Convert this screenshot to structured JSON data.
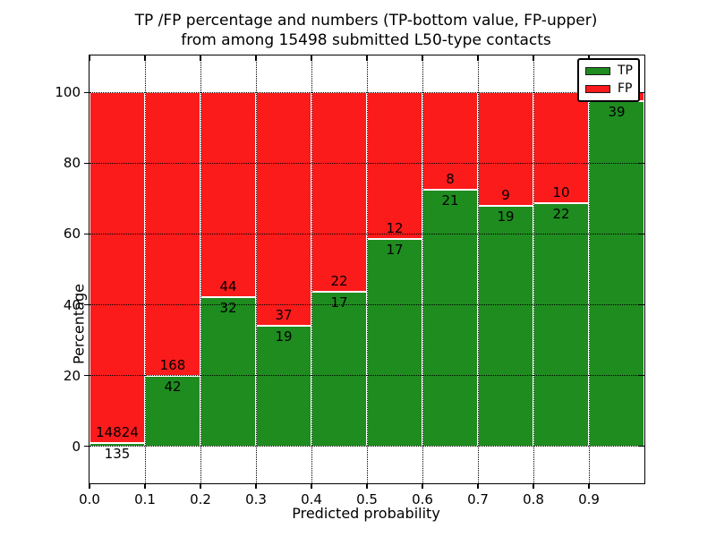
{
  "title": {
    "line1": "TP /FP percentage and numbers (TP-bottom value, FP-upper)",
    "line2": "from among 15498 submitted L50-type contacts"
  },
  "chart_data": {
    "type": "bar",
    "stacked": true,
    "title": "TP /FP percentage and numbers (TP-bottom value, FP-upper)\nfrom among 15498 submitted L50-type contacts",
    "xlabel": "Predicted probability",
    "ylabel": "Percentage",
    "xlim": [
      0.0,
      1.0
    ],
    "ylim": [
      -10.5,
      110.5
    ],
    "x_ticks": [
      "0.0",
      "0.1",
      "0.2",
      "0.3",
      "0.4",
      "0.5",
      "0.6",
      "0.7",
      "0.8",
      "0.9"
    ],
    "y_ticks": [
      0,
      20,
      40,
      60,
      80,
      100
    ],
    "grid": "dotted, both axes, drawn over bars",
    "bar_unit": "percent of bin total (TP+FP stacked to 100%)",
    "total_contacts": 15498,
    "legend": {
      "position": "upper-right",
      "entries": [
        {
          "label": "TP",
          "color": "#1f8c1f"
        },
        {
          "label": "FP",
          "color": "#fb1b1b"
        }
      ]
    },
    "bins": [
      {
        "range": [
          0.0,
          0.1
        ],
        "tp": 135,
        "fp": 14824,
        "show_fp_label": true
      },
      {
        "range": [
          0.1,
          0.2
        ],
        "tp": 42,
        "fp": 168,
        "show_fp_label": true
      },
      {
        "range": [
          0.2,
          0.3
        ],
        "tp": 32,
        "fp": 44,
        "show_fp_label": true
      },
      {
        "range": [
          0.3,
          0.4
        ],
        "tp": 19,
        "fp": 37,
        "show_fp_label": true
      },
      {
        "range": [
          0.4,
          0.5
        ],
        "tp": 17,
        "fp": 22,
        "show_fp_label": true
      },
      {
        "range": [
          0.5,
          0.6
        ],
        "tp": 17,
        "fp": 12,
        "show_fp_label": true
      },
      {
        "range": [
          0.6,
          0.7
        ],
        "tp": 21,
        "fp": 8,
        "show_fp_label": true
      },
      {
        "range": [
          0.7,
          0.8
        ],
        "tp": 19,
        "fp": 9,
        "show_fp_label": true
      },
      {
        "range": [
          0.8,
          0.9
        ],
        "tp": 22,
        "fp": 10,
        "show_fp_label": true
      },
      {
        "range": [
          0.9,
          1.0
        ],
        "tp": 39,
        "fp": 1,
        "show_fp_label": false
      }
    ]
  },
  "colors": {
    "tp": "#1f8c1f",
    "fp": "#fb1b1b",
    "bar_edge": "#ffffff",
    "grid": "#000000",
    "axis": "#000000",
    "background": "#ffffff"
  }
}
